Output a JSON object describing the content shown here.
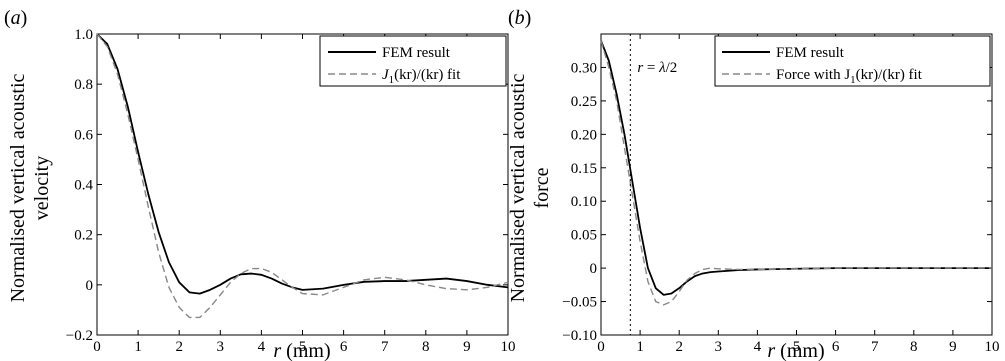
{
  "chart_data": [
    {
      "panel_label": "(a)",
      "type": "line",
      "xlabel": "r (mm)",
      "ylabel": "Normalised vertical acoustic velocity",
      "xlim": [
        0,
        10
      ],
      "ylim": [
        -0.2,
        1.0
      ],
      "xticks": [
        "0",
        "1",
        "2",
        "3",
        "4",
        "5",
        "6",
        "7",
        "8",
        "9",
        "10"
      ],
      "yticks": [
        "1.0",
        "0.8",
        "0.6",
        "0.4",
        "0.2",
        "0",
        "−0.2"
      ],
      "grid": false,
      "legend_position": "top-right",
      "legend": [
        "FEM result",
        "J1(kr)/(kr) fit"
      ],
      "series": [
        {
          "name": "FEM result",
          "style": "solid",
          "color": "#000000",
          "x": [
            0,
            0.25,
            0.5,
            0.75,
            1.0,
            1.25,
            1.5,
            1.75,
            2.0,
            2.25,
            2.5,
            2.75,
            3.0,
            3.25,
            3.5,
            3.75,
            4.0,
            4.25,
            4.5,
            4.75,
            5.0,
            5.5,
            6.0,
            6.5,
            7.0,
            7.5,
            8.0,
            8.5,
            9.0,
            9.5,
            10.0
          ],
          "y": [
            1.0,
            0.96,
            0.86,
            0.71,
            0.53,
            0.36,
            0.21,
            0.09,
            0.01,
            -0.03,
            -0.035,
            -0.02,
            0.0,
            0.025,
            0.042,
            0.045,
            0.04,
            0.025,
            0.005,
            -0.01,
            -0.02,
            -0.015,
            0.0,
            0.012,
            0.015,
            0.015,
            0.02,
            0.025,
            0.015,
            0.0,
            -0.01
          ]
        },
        {
          "name": "J1(kr)/(kr) fit",
          "style": "dashed",
          "color": "#888888",
          "x": [
            0,
            0.25,
            0.5,
            0.75,
            1.0,
            1.25,
            1.5,
            1.75,
            2.0,
            2.25,
            2.5,
            2.75,
            3.0,
            3.25,
            3.5,
            3.75,
            4.0,
            4.25,
            4.5,
            4.75,
            5.0,
            5.5,
            6.0,
            6.5,
            7.0,
            7.5,
            8.0,
            8.5,
            9.0,
            9.5,
            10.0
          ],
          "y": [
            1.0,
            0.95,
            0.84,
            0.68,
            0.5,
            0.31,
            0.13,
            -0.01,
            -0.09,
            -0.13,
            -0.13,
            -0.09,
            -0.04,
            0.01,
            0.045,
            0.065,
            0.065,
            0.05,
            0.02,
            -0.01,
            -0.035,
            -0.04,
            -0.01,
            0.02,
            0.03,
            0.02,
            0.0,
            -0.015,
            -0.02,
            -0.01,
            0.01
          ]
        }
      ]
    },
    {
      "panel_label": "(b)",
      "type": "line",
      "xlabel": "r (mm)",
      "ylabel": "Normalised vertical acoustic force",
      "xlim": [
        0,
        10
      ],
      "ylim": [
        -0.1,
        0.35
      ],
      "xticks": [
        "0",
        "1",
        "2",
        "3",
        "4",
        "5",
        "6",
        "7",
        "8",
        "9",
        "10"
      ],
      "yticks": [
        "0.30",
        "0.25",
        "0.20",
        "0.15",
        "0.10",
        "0.05",
        "0",
        "−0.05",
        "−0.10"
      ],
      "grid": false,
      "legend_position": "top-right",
      "legend": [
        "FEM result",
        "Force with J1(kr)/(kr) fit"
      ],
      "annotation": {
        "label": "r = λ/2",
        "x": 0.75
      },
      "series": [
        {
          "name": "FEM result",
          "style": "solid",
          "color": "#000000",
          "x": [
            0,
            0.2,
            0.4,
            0.6,
            0.8,
            1.0,
            1.2,
            1.4,
            1.6,
            1.8,
            2.0,
            2.2,
            2.4,
            2.6,
            2.8,
            3.0,
            3.5,
            4.0,
            5.0,
            6.0,
            7.0,
            8.0,
            9.0,
            10.0
          ],
          "y": [
            0.34,
            0.31,
            0.26,
            0.2,
            0.13,
            0.06,
            0.0,
            -0.03,
            -0.04,
            -0.038,
            -0.03,
            -0.02,
            -0.012,
            -0.008,
            -0.006,
            -0.005,
            -0.003,
            -0.002,
            -0.001,
            0.0,
            0.0,
            0.0,
            0.0,
            0.0
          ]
        },
        {
          "name": "Force with J1(kr)/(kr) fit",
          "style": "dashed",
          "color": "#888888",
          "x": [
            0,
            0.2,
            0.4,
            0.6,
            0.8,
            1.0,
            1.2,
            1.4,
            1.6,
            1.8,
            2.0,
            2.2,
            2.4,
            2.6,
            2.8,
            3.0,
            3.5,
            4.0,
            5.0,
            6.0,
            7.0,
            8.0,
            9.0,
            10.0
          ],
          "y": [
            0.34,
            0.3,
            0.25,
            0.18,
            0.11,
            0.04,
            -0.02,
            -0.05,
            -0.055,
            -0.05,
            -0.035,
            -0.018,
            -0.008,
            -0.002,
            0.0,
            -0.001,
            -0.002,
            -0.002,
            -0.001,
            0.0,
            0.0,
            0.0,
            0.0,
            0.0
          ]
        }
      ]
    }
  ],
  "panels": {
    "a": {
      "label": "(a)",
      "ylabel_line1": "Normalised vertical acoustic",
      "ylabel_line2": "velocity",
      "legend1": "FEM result",
      "legend2_pre": "J",
      "legend2_sub": "1",
      "legend2_post": "(kr)/(kr) fit"
    },
    "b": {
      "label": "(b)",
      "ylabel_line1": "Normalised vertical acoustic",
      "ylabel_line2": "force",
      "legend1": "FEM result",
      "legend2_pre": "Force with J",
      "legend2_sub": "1",
      "legend2_post": "(kr)/(kr) fit",
      "annotation": "r = λ/2"
    }
  },
  "xlabel_var": "r",
  "xlabel_unit": " (mm)"
}
